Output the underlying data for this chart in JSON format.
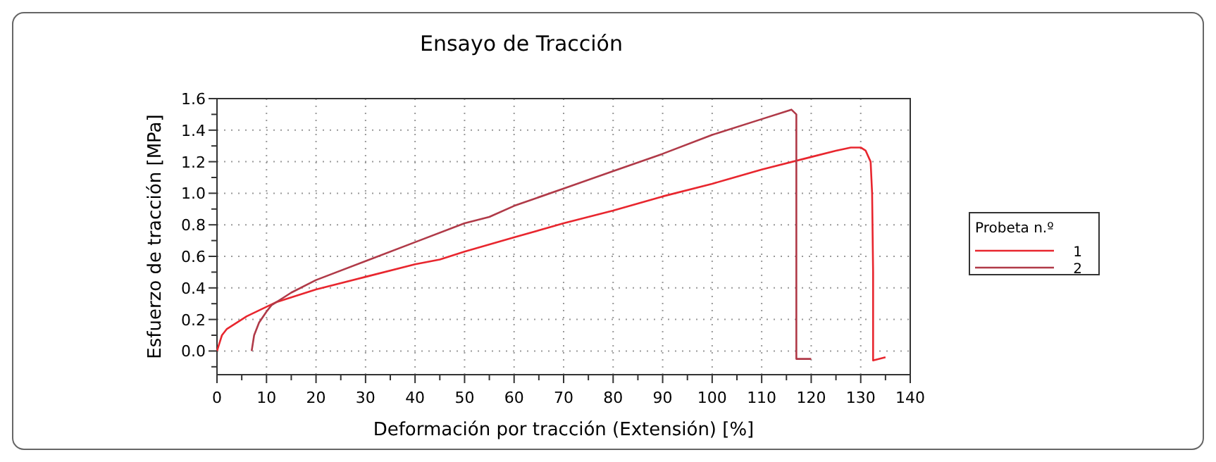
{
  "chart_data": {
    "type": "line",
    "title": "Ensayo de Tracción",
    "xlabel": "Deformación por tracción (Extensión) [%]",
    "ylabel": "Esfuerzo de tracción [MPa]",
    "legend_title": "Probeta n.º",
    "legend": "right",
    "grid": true,
    "line_style": "solid",
    "marker": "none",
    "xlim": [
      0,
      140
    ],
    "xticks": [
      0,
      {
        "value": 5,
        "label": null
      },
      10,
      {
        "value": 15,
        "label": null
      },
      20,
      {
        "value": 25,
        "label": null
      },
      30,
      {
        "value": 35,
        "label": null
      },
      40,
      {
        "value": 45,
        "label": null
      },
      50,
      {
        "value": 55,
        "label": null
      },
      60,
      {
        "value": 65,
        "label": null
      },
      70,
      {
        "value": 75,
        "label": null
      },
      80,
      {
        "value": 85,
        "label": null
      },
      90,
      {
        "value": 95,
        "label": null
      },
      100,
      {
        "value": 105,
        "label": null
      },
      110,
      {
        "value": 115,
        "label": null
      },
      120,
      {
        "value": 125,
        "label": null
      },
      130,
      {
        "value": 135,
        "label": null
      },
      140
    ],
    "ylim": [
      -0.15,
      1.6
    ],
    "yticks": [
      {
        "value": -0.1,
        "label": null
      },
      {
        "value": 0,
        "label": "0.0"
      },
      {
        "value": 0.1,
        "label": null
      },
      0.2,
      {
        "value": 0.3,
        "label": null
      },
      0.4,
      {
        "value": 0.5,
        "label": null
      },
      0.6,
      {
        "value": 0.7,
        "label": null
      },
      0.8,
      {
        "value": 0.9,
        "label": null
      },
      {
        "value": 1,
        "label": "1.0"
      },
      {
        "value": 1.1,
        "label": null
      },
      1.2,
      {
        "value": 1.3,
        "label": null
      },
      1.4,
      {
        "value": 1.5,
        "label": null
      },
      1.6
    ],
    "series": [
      {
        "name": "1",
        "color": "#e8262e",
        "x": [
          0,
          0.5,
          1,
          2,
          4,
          6,
          8,
          10,
          12,
          15,
          20,
          30,
          40,
          45,
          50,
          60,
          70,
          80,
          90,
          100,
          110,
          120,
          125,
          128,
          130,
          131,
          132,
          132.3,
          132.5,
          132.5,
          135
        ],
        "values": [
          0,
          0.05,
          0.1,
          0.14,
          0.18,
          0.22,
          0.25,
          0.28,
          0.31,
          0.34,
          0.39,
          0.47,
          0.55,
          0.58,
          0.63,
          0.72,
          0.81,
          0.89,
          0.98,
          1.06,
          1.15,
          1.23,
          1.27,
          1.29,
          1.29,
          1.27,
          1.2,
          1.0,
          0.5,
          -0.06,
          -0.04
        ]
      },
      {
        "name": "2",
        "color": "#b03a48",
        "x": [
          7,
          7.5,
          8.5,
          10,
          11,
          13,
          15,
          20,
          30,
          40,
          50,
          55,
          60,
          70,
          80,
          90,
          100,
          110,
          115,
          116,
          117,
          117,
          120
        ],
        "values": [
          0,
          0.1,
          0.18,
          0.25,
          0.29,
          0.33,
          0.37,
          0.45,
          0.57,
          0.69,
          0.81,
          0.85,
          0.92,
          1.03,
          1.14,
          1.25,
          1.37,
          1.47,
          1.52,
          1.53,
          1.5,
          -0.05,
          -0.05
        ]
      }
    ]
  }
}
